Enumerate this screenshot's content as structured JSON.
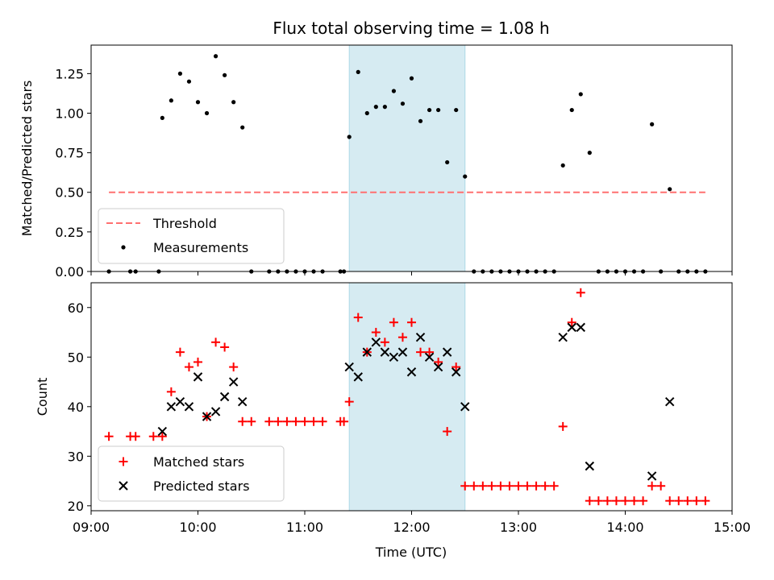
{
  "chart_data": [
    {
      "type": "scatter",
      "title": "Flux total observing time = 1.08 h",
      "ylabel": "Matched/Predicted stars",
      "xlabel": "",
      "xlim": [
        "09:00",
        "15:00"
      ],
      "ylim": [
        0,
        1.43
      ],
      "yticks": [
        "0.00",
        "0.25",
        "0.50",
        "0.75",
        "1.00",
        "1.25"
      ],
      "highlight_span": [
        "11:25",
        "12:30"
      ],
      "highlight_color": "#add8e6",
      "legend": {
        "placement": "lower-left",
        "entries": [
          "Threshold",
          "Measurements"
        ]
      },
      "threshold": {
        "name": "Threshold",
        "y": 0.5,
        "x_start": "09:10",
        "x_end": "14:45",
        "color": "#ff7070"
      },
      "series": [
        {
          "name": "Measurements",
          "color": "#000000",
          "points": [
            [
              "09:10",
              0
            ],
            [
              "09:22",
              0
            ],
            [
              "09:25",
              0
            ],
            [
              "09:38",
              0
            ],
            [
              "09:40",
              0.97
            ],
            [
              "09:45",
              1.08
            ],
            [
              "09:50",
              1.25
            ],
            [
              "09:55",
              1.2
            ],
            [
              "10:00",
              1.07
            ],
            [
              "10:05",
              1.0
            ],
            [
              "10:10",
              1.36
            ],
            [
              "10:15",
              1.24
            ],
            [
              "10:20",
              1.07
            ],
            [
              "10:25",
              0.91
            ],
            [
              "10:30",
              0
            ],
            [
              "10:40",
              0
            ],
            [
              "10:45",
              0
            ],
            [
              "10:50",
              0
            ],
            [
              "10:55",
              0
            ],
            [
              "11:00",
              0
            ],
            [
              "11:05",
              0
            ],
            [
              "11:10",
              0
            ],
            [
              "11:20",
              0
            ],
            [
              "11:22",
              0
            ],
            [
              "11:25",
              0.85
            ],
            [
              "11:30",
              1.26
            ],
            [
              "11:35",
              1.0
            ],
            [
              "11:40",
              1.04
            ],
            [
              "11:45",
              1.04
            ],
            [
              "11:50",
              1.14
            ],
            [
              "11:55",
              1.06
            ],
            [
              "12:00",
              1.22
            ],
            [
              "12:05",
              0.95
            ],
            [
              "12:10",
              1.02
            ],
            [
              "12:15",
              1.02
            ],
            [
              "12:20",
              0.69
            ],
            [
              "12:25",
              1.02
            ],
            [
              "12:30",
              0.6
            ],
            [
              "12:35",
              0
            ],
            [
              "12:40",
              0
            ],
            [
              "12:45",
              0
            ],
            [
              "12:50",
              0
            ],
            [
              "12:55",
              0
            ],
            [
              "13:00",
              0
            ],
            [
              "13:05",
              0
            ],
            [
              "13:10",
              0
            ],
            [
              "13:15",
              0
            ],
            [
              "13:20",
              0
            ],
            [
              "13:25",
              0.67
            ],
            [
              "13:30",
              1.02
            ],
            [
              "13:35",
              1.12
            ],
            [
              "13:40",
              0.75
            ],
            [
              "13:45",
              0
            ],
            [
              "13:50",
              0
            ],
            [
              "13:55",
              0
            ],
            [
              "14:00",
              0
            ],
            [
              "14:05",
              0
            ],
            [
              "14:10",
              0
            ],
            [
              "14:15",
              0.93
            ],
            [
              "14:20",
              0
            ],
            [
              "14:25",
              0.52
            ],
            [
              "14:30",
              0
            ],
            [
              "14:35",
              0
            ],
            [
              "14:40",
              0
            ],
            [
              "14:45",
              0
            ]
          ]
        }
      ]
    },
    {
      "type": "scatter",
      "title": "",
      "ylabel": "Count",
      "xlabel": "Time (UTC)",
      "xlim": [
        "09:00",
        "15:00"
      ],
      "ylim": [
        19,
        65
      ],
      "xticks": [
        "09:00",
        "10:00",
        "11:00",
        "12:00",
        "13:00",
        "14:00",
        "15:00"
      ],
      "yticks": [
        "20",
        "30",
        "40",
        "50",
        "60"
      ],
      "highlight_span": [
        "11:25",
        "12:30"
      ],
      "highlight_color": "#add8e6",
      "legend": {
        "placement": "lower-left",
        "entries": [
          "Matched stars",
          "Predicted stars"
        ]
      },
      "series": [
        {
          "name": "Matched stars",
          "marker": "plus",
          "color": "#ff0000",
          "points": [
            [
              "09:10",
              34
            ],
            [
              "09:22",
              34
            ],
            [
              "09:25",
              34
            ],
            [
              "09:35",
              34
            ],
            [
              "09:40",
              34
            ],
            [
              "09:45",
              43
            ],
            [
              "09:50",
              51
            ],
            [
              "09:55",
              48
            ],
            [
              "10:00",
              49
            ],
            [
              "10:05",
              38
            ],
            [
              "10:10",
              53
            ],
            [
              "10:15",
              52
            ],
            [
              "10:20",
              48
            ],
            [
              "10:25",
              37
            ],
            [
              "10:30",
              37
            ],
            [
              "10:40",
              37
            ],
            [
              "10:45",
              37
            ],
            [
              "10:50",
              37
            ],
            [
              "10:55",
              37
            ],
            [
              "11:00",
              37
            ],
            [
              "11:05",
              37
            ],
            [
              "11:10",
              37
            ],
            [
              "11:20",
              37
            ],
            [
              "11:22",
              37
            ],
            [
              "11:25",
              41
            ],
            [
              "11:30",
              58
            ],
            [
              "11:35",
              51
            ],
            [
              "11:40",
              55
            ],
            [
              "11:45",
              53
            ],
            [
              "11:50",
              57
            ],
            [
              "11:55",
              54
            ],
            [
              "12:00",
              57
            ],
            [
              "12:05",
              51
            ],
            [
              "12:10",
              51
            ],
            [
              "12:15",
              49
            ],
            [
              "12:20",
              35
            ],
            [
              "12:25",
              48
            ],
            [
              "12:30",
              24
            ],
            [
              "12:35",
              24
            ],
            [
              "12:40",
              24
            ],
            [
              "12:45",
              24
            ],
            [
              "12:50",
              24
            ],
            [
              "12:55",
              24
            ],
            [
              "13:00",
              24
            ],
            [
              "13:05",
              24
            ],
            [
              "13:10",
              24
            ],
            [
              "13:15",
              24
            ],
            [
              "13:20",
              24
            ],
            [
              "13:25",
              36
            ],
            [
              "13:30",
              57
            ],
            [
              "13:35",
              63
            ],
            [
              "13:40",
              21
            ],
            [
              "13:45",
              21
            ],
            [
              "13:50",
              21
            ],
            [
              "13:55",
              21
            ],
            [
              "14:00",
              21
            ],
            [
              "14:05",
              21
            ],
            [
              "14:10",
              21
            ],
            [
              "14:15",
              24
            ],
            [
              "14:20",
              24
            ],
            [
              "14:25",
              21
            ],
            [
              "14:30",
              21
            ],
            [
              "14:35",
              21
            ],
            [
              "14:40",
              21
            ],
            [
              "14:45",
              21
            ]
          ]
        },
        {
          "name": "Predicted stars",
          "marker": "x",
          "color": "#000000",
          "points": [
            [
              "09:40",
              35
            ],
            [
              "09:45",
              40
            ],
            [
              "09:50",
              41
            ],
            [
              "09:55",
              40
            ],
            [
              "10:00",
              46
            ],
            [
              "10:05",
              38
            ],
            [
              "10:10",
              39
            ],
            [
              "10:15",
              42
            ],
            [
              "10:20",
              45
            ],
            [
              "10:25",
              41
            ],
            [
              "11:25",
              48
            ],
            [
              "11:30",
              46
            ],
            [
              "11:35",
              51
            ],
            [
              "11:40",
              53
            ],
            [
              "11:45",
              51
            ],
            [
              "11:50",
              50
            ],
            [
              "11:55",
              51
            ],
            [
              "12:00",
              47
            ],
            [
              "12:05",
              54
            ],
            [
              "12:10",
              50
            ],
            [
              "12:15",
              48
            ],
            [
              "12:20",
              51
            ],
            [
              "12:25",
              47
            ],
            [
              "12:30",
              40
            ],
            [
              "13:25",
              54
            ],
            [
              "13:30",
              56
            ],
            [
              "13:35",
              56
            ],
            [
              "13:40",
              28
            ],
            [
              "14:15",
              26
            ],
            [
              "14:25",
              41
            ]
          ]
        }
      ]
    }
  ]
}
